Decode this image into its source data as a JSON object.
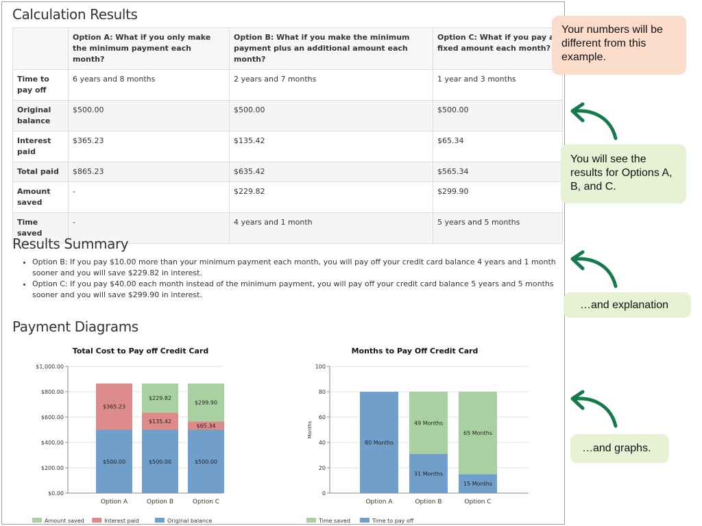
{
  "sections": {
    "calc_title": "Calculation Results",
    "summary_title": "Results Summary",
    "diagrams_title": "Payment Diagrams"
  },
  "table": {
    "headers": [
      "",
      "Option A: What if you only make the minimum payment each month?",
      "Option B: What if you make the minimum payment plus an additional amount each month?",
      "Option C: What if you pay a fixed amount each month?"
    ],
    "rows": [
      {
        "label": "Time to pay off",
        "a": "6 years and 8 months",
        "b": "2 years and 7 months",
        "c": "1 year and 3 months"
      },
      {
        "label": "Original balance",
        "a": "$500.00",
        "b": "$500.00",
        "c": "$500.00"
      },
      {
        "label": "Interest paid",
        "a": "$365.23",
        "b": "$135.42",
        "c": "$65.34"
      },
      {
        "label": "Total paid",
        "a": "$865.23",
        "b": "$635.42",
        "c": "$565.34"
      },
      {
        "label": "Amount saved",
        "a": "-",
        "b": "$229.82",
        "c": "$299.90"
      },
      {
        "label": "Time saved",
        "a": "-",
        "b": "4 years and 1 month",
        "c": "5 years and 5 months"
      }
    ]
  },
  "summary": [
    "Option B: If you pay $10.00 more than your minimum payment each month, you will pay off your credit card balance 4 years and 1 month sooner and you will save $229.82 in interest.",
    "Option C: If you pay $40.00 each month instead of the minimum payment, you will pay off your credit card balance 5 years and 5 months sooner and you will save $299.90 in interest."
  ],
  "callouts": {
    "numbers": "Your numbers will be different from this example.",
    "results": "You will see the results for Options A, B, and C.",
    "explanation": "…and explanation",
    "graphs": "…and graphs."
  },
  "colors": {
    "blue": "#6f9fca",
    "red": "#dd8a8a",
    "green": "#a8d0a0",
    "arrow": "#157a4a",
    "callout_peach": "#fbdccb",
    "callout_green": "#e6f2d3"
  },
  "chart_data": [
    {
      "type": "bar",
      "stacked": true,
      "title": "Total Cost to Pay off Credit Card",
      "categories": [
        "Option A",
        "Option B",
        "Option C"
      ],
      "ylim": [
        0,
        1000
      ],
      "yticks": [
        "$0.00",
        "$200.00",
        "$400.00",
        "$600.00",
        "$800.00",
        "$1,000.00"
      ],
      "ytick_values": [
        0,
        200,
        400,
        600,
        800,
        1000
      ],
      "series": [
        {
          "name": "Original balance",
          "color": "#6f9fca",
          "values": [
            500,
            500,
            500
          ],
          "labels": [
            "$500.00",
            "$500.00",
            "$500.00"
          ]
        },
        {
          "name": "Interest paid",
          "color": "#dd8a8a",
          "values": [
            365.23,
            135.42,
            65.34
          ],
          "labels": [
            "$365.23",
            "$135.42",
            "$65.34"
          ]
        },
        {
          "name": "Amount saved",
          "color": "#a8d0a0",
          "values": [
            0,
            229.82,
            299.9
          ],
          "labels": [
            "",
            "$229.82",
            "$299.90"
          ]
        }
      ],
      "legend": [
        "Amount saved",
        "Interest paid",
        "Original balance"
      ],
      "legend_placement": "bottom-left",
      "grid": true
    },
    {
      "type": "bar",
      "stacked": true,
      "title": "Months to Pay Off Credit Card",
      "ylabel": "Months",
      "categories": [
        "Option A",
        "Option B",
        "Option C"
      ],
      "ylim": [
        0,
        100
      ],
      "yticks": [
        "0",
        "20",
        "40",
        "60",
        "80",
        "100"
      ],
      "ytick_values": [
        0,
        20,
        40,
        60,
        80,
        100
      ],
      "series": [
        {
          "name": "Time to pay off",
          "color": "#6f9fca",
          "values": [
            80,
            31,
            15
          ],
          "labels": [
            "80 Months",
            "31 Months",
            "15 Months"
          ]
        },
        {
          "name": "Time saved",
          "color": "#a8d0a0",
          "values": [
            0,
            49,
            65
          ],
          "labels": [
            "",
            "49 Months",
            "65 Months"
          ]
        }
      ],
      "legend": [
        "Time saved",
        "Time to pay off"
      ],
      "legend_placement": "bottom-left",
      "grid": true
    }
  ]
}
